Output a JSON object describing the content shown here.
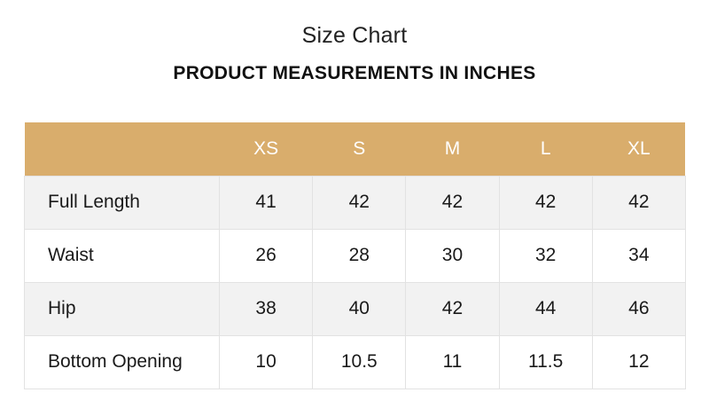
{
  "title": "Size Chart",
  "subtitle": "PRODUCT MEASUREMENTS IN INCHES",
  "colors": {
    "header_bg": "#d9ad6c",
    "header_text": "#ffffff",
    "stripe_bg": "#f2f2f2"
  },
  "table": {
    "corner": "",
    "sizes": [
      "XS",
      "S",
      "M",
      "L",
      "XL"
    ],
    "rows": [
      {
        "label": "Full Length",
        "values": [
          "41",
          "42",
          "42",
          "42",
          "42"
        ]
      },
      {
        "label": "Waist",
        "values": [
          "26",
          "28",
          "30",
          "32",
          "34"
        ]
      },
      {
        "label": "Hip",
        "values": [
          "38",
          "40",
          "42",
          "44",
          "46"
        ]
      },
      {
        "label": "Bottom Opening",
        "values": [
          "10",
          "10.5",
          "11",
          "11.5",
          "12"
        ]
      }
    ]
  }
}
